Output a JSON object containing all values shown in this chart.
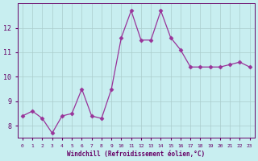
{
  "x": [
    0,
    1,
    2,
    3,
    4,
    5,
    6,
    7,
    8,
    9,
    10,
    11,
    12,
    13,
    14,
    15,
    16,
    17,
    18,
    19,
    20,
    21,
    22,
    23
  ],
  "y": [
    8.4,
    8.6,
    8.3,
    7.7,
    8.4,
    8.5,
    9.5,
    8.4,
    8.3,
    9.5,
    11.6,
    12.7,
    11.5,
    11.5,
    12.7,
    11.6,
    11.1,
    10.4,
    10.4,
    10.4,
    10.4,
    10.5,
    10.6,
    10.4
  ],
  "xlabel": "Windchill (Refroidissement éolien,°C)",
  "ylim": [
    7.5,
    13.0
  ],
  "xlim_min": -0.5,
  "xlim_max": 23.5,
  "yticks": [
    8,
    9,
    10,
    11,
    12
  ],
  "xticks": [
    0,
    1,
    2,
    3,
    4,
    5,
    6,
    7,
    8,
    9,
    10,
    11,
    12,
    13,
    14,
    15,
    16,
    17,
    18,
    19,
    20,
    21,
    22,
    23
  ],
  "line_color": "#993399",
  "marker": "D",
  "markersize": 2.5,
  "bg_color": "#c8eef0",
  "grid_color": "#aacccc",
  "font_color": "#660066"
}
